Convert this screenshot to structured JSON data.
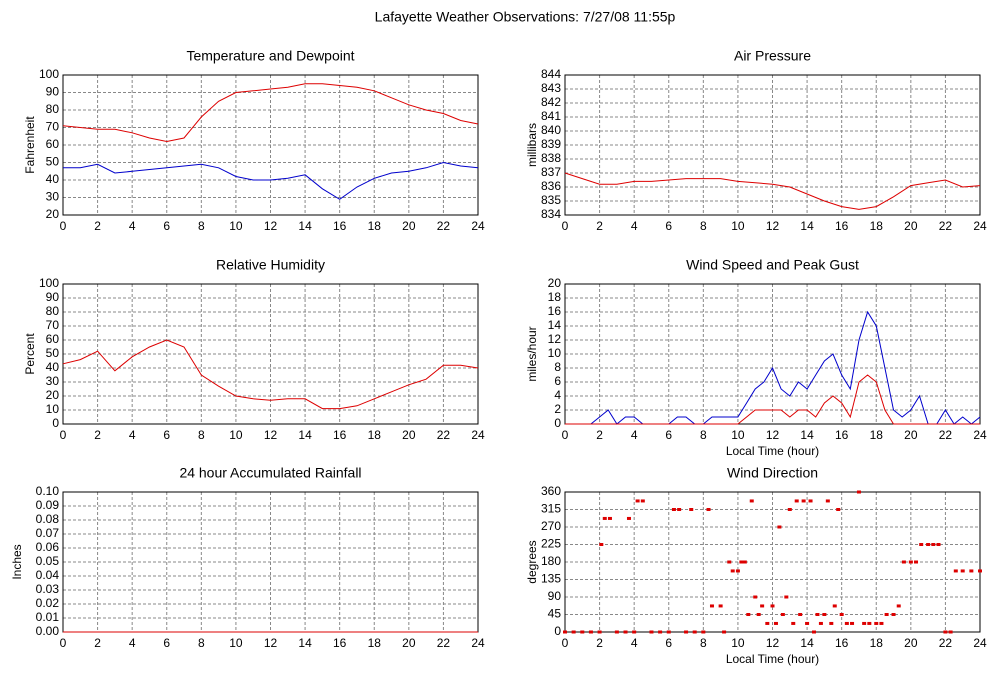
{
  "title": "Lafayette Weather Observations: 7/27/08 11:55p",
  "chart_data": [
    {
      "type": "line",
      "title": "Temperature and Dewpoint",
      "ylabel": "Fahrenheit",
      "x": [
        0,
        1,
        2,
        3,
        4,
        5,
        6,
        7,
        8,
        9,
        10,
        11,
        12,
        13,
        14,
        15,
        16,
        17,
        18,
        19,
        20,
        21,
        22,
        23,
        24
      ],
      "series": [
        {
          "color": "#dd0000",
          "values": [
            71,
            70,
            69,
            69,
            67,
            64,
            62,
            64,
            76,
            85,
            90,
            91,
            92,
            93,
            95,
            95,
            94,
            93,
            91,
            87,
            83,
            80,
            78,
            74,
            72
          ]
        },
        {
          "color": "#0000cc",
          "values": [
            47,
            47,
            49,
            44,
            45,
            46,
            47,
            48,
            49,
            47,
            42,
            40,
            40,
            41,
            43,
            35,
            29,
            36,
            41,
            44,
            45,
            47,
            50,
            48,
            47
          ]
        }
      ],
      "xlim": [
        0,
        24
      ],
      "ylim": [
        20,
        100
      ],
      "xticks": [
        0,
        2,
        4,
        6,
        8,
        10,
        12,
        14,
        16,
        18,
        20,
        22,
        24
      ],
      "yticks": [
        20,
        30,
        40,
        50,
        60,
        70,
        80,
        90,
        100
      ],
      "grid": true
    },
    {
      "type": "line",
      "title": "Air Pressure",
      "ylabel": "millibars",
      "x": [
        0,
        1,
        2,
        3,
        4,
        5,
        6,
        7,
        8,
        9,
        10,
        11,
        12,
        13,
        14,
        15,
        16,
        17,
        18,
        19,
        20,
        21,
        22,
        23,
        24
      ],
      "series": [
        {
          "color": "#dd0000",
          "values": [
            837.0,
            836.6,
            836.2,
            836.2,
            836.4,
            836.4,
            836.5,
            836.6,
            836.6,
            836.6,
            836.4,
            836.3,
            836.2,
            836.0,
            835.5,
            835.0,
            834.6,
            834.4,
            834.6,
            835.3,
            836.1,
            836.3,
            836.5,
            836.0,
            836.1
          ]
        }
      ],
      "xlim": [
        0,
        24
      ],
      "ylim": [
        834,
        844
      ],
      "xticks": [
        0,
        2,
        4,
        6,
        8,
        10,
        12,
        14,
        16,
        18,
        20,
        22,
        24
      ],
      "yticks": [
        834,
        835,
        836,
        837,
        838,
        839,
        840,
        841,
        842,
        843,
        844
      ],
      "grid": true
    },
    {
      "type": "line",
      "title": "Relative Humidity",
      "ylabel": "Percent",
      "x": [
        0,
        1,
        2,
        3,
        4,
        5,
        6,
        7,
        8,
        9,
        10,
        11,
        12,
        13,
        14,
        15,
        16,
        17,
        18,
        19,
        20,
        21,
        22,
        23,
        24
      ],
      "series": [
        {
          "color": "#dd0000",
          "values": [
            43,
            46,
            52,
            38,
            48,
            55,
            60,
            55,
            35,
            27,
            20,
            18,
            17,
            18,
            18,
            11,
            11,
            13,
            18,
            23,
            28,
            32,
            42,
            42,
            40
          ]
        }
      ],
      "xlim": [
        0,
        24
      ],
      "ylim": [
        0,
        100
      ],
      "xticks": [
        0,
        2,
        4,
        6,
        8,
        10,
        12,
        14,
        16,
        18,
        20,
        22,
        24
      ],
      "yticks": [
        0,
        10,
        20,
        30,
        40,
        50,
        60,
        70,
        80,
        90,
        100
      ],
      "grid": true
    },
    {
      "type": "line",
      "title": "Wind Speed and Peak Gust",
      "ylabel": "miles/hour",
      "xlabel": "Local Time (hour)",
      "x": [
        0,
        0.5,
        1,
        1.5,
        2,
        2.5,
        3,
        3.5,
        4,
        4.5,
        5,
        5.5,
        6,
        6.5,
        7,
        7.5,
        8,
        8.5,
        9,
        9.5,
        10,
        10.5,
        11,
        11.5,
        12,
        12.5,
        13,
        13.5,
        14,
        14.5,
        15,
        15.5,
        16,
        16.5,
        17,
        17.5,
        18,
        18.5,
        19,
        19.5,
        20,
        20.5,
        21,
        21.5,
        22,
        22.5,
        23,
        23.5,
        24
      ],
      "series": [
        {
          "color": "#0000cc",
          "values": [
            0,
            0,
            0,
            0,
            1,
            2,
            0,
            1,
            1,
            0,
            0,
            0,
            0,
            1,
            1,
            0,
            0,
            1,
            1,
            1,
            1,
            3,
            5,
            6,
            8,
            5,
            4,
            6,
            5,
            7,
            9,
            10,
            7,
            5,
            12,
            16,
            14,
            8,
            2,
            1,
            2,
            4,
            0,
            0,
            2,
            0,
            1,
            0,
            1
          ]
        },
        {
          "color": "#dd0000",
          "values": [
            0,
            0,
            0,
            0,
            0,
            0,
            0,
            0,
            0,
            0,
            0,
            0,
            0,
            0,
            0,
            0,
            0,
            0,
            0,
            0,
            0,
            1,
            2,
            2,
            2,
            2,
            1,
            2,
            2,
            1,
            3,
            4,
            3,
            1,
            6,
            7,
            6,
            2,
            0,
            0,
            0,
            0,
            0,
            0,
            0,
            0,
            0,
            0,
            0
          ]
        }
      ],
      "xlim": [
        0,
        24
      ],
      "ylim": [
        0,
        20
      ],
      "xticks": [
        0,
        2,
        4,
        6,
        8,
        10,
        12,
        14,
        16,
        18,
        20,
        22,
        24
      ],
      "yticks": [
        0,
        2,
        4,
        6,
        8,
        10,
        12,
        14,
        16,
        18,
        20
      ],
      "grid": true
    },
    {
      "type": "line",
      "title": "24 hour Accumulated Rainfall",
      "ylabel": "Inches",
      "x": [
        0,
        24
      ],
      "series": [
        {
          "color": "#dd0000",
          "values": [
            0,
            0
          ]
        }
      ],
      "xlim": [
        0,
        24
      ],
      "ylim": [
        0,
        0.1
      ],
      "xticks": [
        0,
        2,
        4,
        6,
        8,
        10,
        12,
        14,
        16,
        18,
        20,
        22,
        24
      ],
      "yticks": [
        {
          "value": 0,
          "label": "0.00"
        },
        0.01,
        0.02,
        0.03,
        0.04,
        0.05,
        0.06,
        0.07,
        0.08,
        0.09,
        {
          "value": 0.1,
          "label": "0.10"
        }
      ],
      "grid": true
    },
    {
      "type": "scatter",
      "title": "Wind Direction",
      "ylabel": "degrees",
      "xlabel": "Local Time (hour)",
      "x": [
        0,
        0.5,
        1,
        1.5,
        2,
        2.1,
        2.3,
        2.6,
        3,
        3.5,
        3.7,
        4,
        4.2,
        4.5,
        5,
        5.5,
        6,
        6.3,
        6.6,
        7,
        7.3,
        7.5,
        8,
        8.3,
        8.5,
        9,
        9.2,
        9.5,
        9.7,
        10,
        10.2,
        10.4,
        10.6,
        10.8,
        11,
        11.2,
        11.4,
        11.7,
        12,
        12.2,
        12.4,
        12.6,
        12.8,
        13,
        13.2,
        13.4,
        13.6,
        13.8,
        14,
        14.2,
        14.4,
        14.6,
        14.8,
        15,
        15.2,
        15.4,
        15.6,
        15.8,
        16,
        16.3,
        16.6,
        17,
        17.3,
        17.6,
        18,
        18.3,
        18.6,
        19,
        19.3,
        19.6,
        20,
        20.3,
        20.6,
        21,
        21.3,
        21.6,
        22,
        22.3,
        22.6,
        23,
        23.5,
        24
      ],
      "series": [
        {
          "color": "#dd0000",
          "values": [
            0,
            0,
            0,
            0,
            0,
            225,
            292,
            292,
            0,
            0,
            292,
            0,
            337,
            337,
            0,
            0,
            0,
            315,
            315,
            0,
            315,
            0,
            0,
            315,
            67,
            67,
            0,
            180,
            157,
            157,
            180,
            180,
            45,
            337,
            90,
            45,
            67,
            22,
            67,
            22,
            270,
            45,
            90,
            315,
            22,
            337,
            45,
            337,
            22,
            337,
            0,
            45,
            22,
            45,
            337,
            22,
            67,
            315,
            45,
            22,
            22,
            360,
            22,
            22,
            22,
            22,
            45,
            45,
            67,
            180,
            180,
            180,
            225,
            225,
            225,
            225,
            0,
            0,
            157,
            157,
            157,
            157
          ]
        }
      ],
      "xlim": [
        0,
        24
      ],
      "ylim": [
        0,
        360
      ],
      "xticks": [
        0,
        2,
        4,
        6,
        8,
        10,
        12,
        14,
        16,
        18,
        20,
        22,
        24
      ],
      "yticks": [
        0,
        45,
        90,
        135,
        180,
        225,
        270,
        315,
        360
      ],
      "grid": true
    }
  ]
}
